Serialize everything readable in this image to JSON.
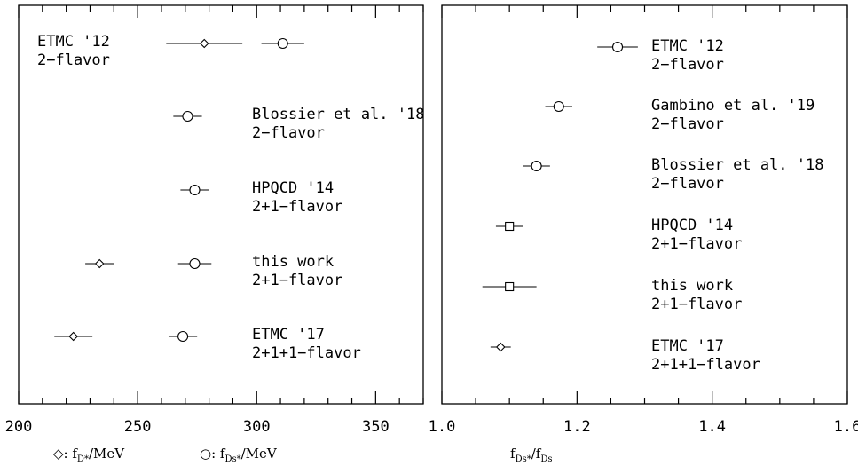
{
  "chart_data": [
    {
      "type": "scatter",
      "xlim": [
        200,
        370
      ],
      "xticks": [
        "200",
        "250",
        "300",
        "350"
      ],
      "x_legend": [
        {
          "symbol": "◇",
          "label_prefix": ": f",
          "sub": "D*",
          "label_suffix": "/MeV"
        },
        {
          "symbol": "○",
          "label_prefix": ": f",
          "sub": "Ds*",
          "label_suffix": "/MeV"
        }
      ],
      "labels": [
        {
          "line1": "ETMC '12",
          "line2": "2−flavor"
        },
        {
          "line1": "Blossier et al. '18",
          "line2": "2−flavor"
        },
        {
          "line1": "HPQCD '14",
          "line2": "2+1−flavor"
        },
        {
          "line1": "this work",
          "line2": "2+1−flavor"
        },
        {
          "line1": "ETMC '17",
          "line2": "2+1+1−flavor"
        }
      ],
      "series": [
        {
          "marker": "diamond",
          "points": [
            {
              "row": 0,
              "x": 278,
              "err": 16
            },
            {
              "row": 3,
              "x": 234,
              "err": 6
            },
            {
              "row": 4,
              "x": 223,
              "err": 8
            }
          ]
        },
        {
          "marker": "circle",
          "points": [
            {
              "row": 0,
              "x": 311,
              "err": 9
            },
            {
              "row": 1,
              "x": 271,
              "err": 6
            },
            {
              "row": 2,
              "x": 274,
              "err": 6
            },
            {
              "row": 3,
              "x": 274,
              "err": 7
            },
            {
              "row": 4,
              "x": 269,
              "err": 6
            }
          ]
        }
      ]
    },
    {
      "type": "scatter",
      "xlim": [
        1.0,
        1.6
      ],
      "xticks": [
        "1.0",
        "1.2",
        "1.4",
        "1.6"
      ],
      "xlabel": {
        "num": "f",
        "num_sub": "Ds*",
        "den": "/f",
        "den_sub": "Ds"
      },
      "labels": [
        {
          "line1": "ETMC '12",
          "line2": "2−flavor"
        },
        {
          "line1": "Gambino et al. '19",
          "line2": "2−flavor"
        },
        {
          "line1": "Blossier et al. '18",
          "line2": "2−flavor"
        },
        {
          "line1": "HPQCD '14",
          "line2": "2+1−flavor"
        },
        {
          "line1": "this work",
          "line2": "2+1−flavor"
        },
        {
          "line1": "ETMC '17",
          "line2": "2+1+1−flavor"
        }
      ],
      "series": [
        {
          "points": [
            {
              "row": 0,
              "x": 1.26,
              "err": 0.03,
              "marker": "circle"
            },
            {
              "row": 1,
              "x": 1.173,
              "err": 0.02,
              "marker": "circle"
            },
            {
              "row": 2,
              "x": 1.14,
              "err": 0.02,
              "marker": "circle"
            },
            {
              "row": 3,
              "x": 1.1,
              "err": 0.02,
              "marker": "square"
            },
            {
              "row": 4,
              "x": 1.1,
              "err": 0.04,
              "marker": "square"
            },
            {
              "row": 5,
              "x": 1.087,
              "err": 0.015,
              "marker": "diamond"
            }
          ]
        }
      ]
    }
  ]
}
